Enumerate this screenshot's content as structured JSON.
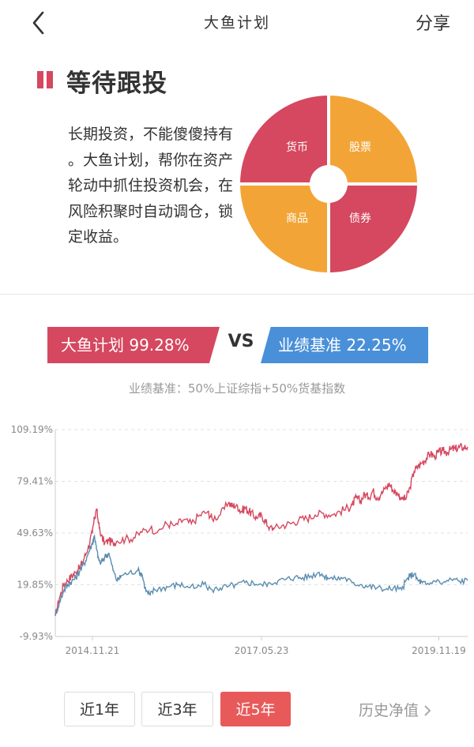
{
  "nav": {
    "title": "大鱼计划",
    "share": "分享"
  },
  "section": {
    "title": "等待跟投",
    "description": "长期投资，不能傻傻持有 。大鱼计划，帮你在资产轮动中抓住投资机会，在风险积聚时自动调仓，锁定收益。"
  },
  "allocation": [
    {
      "label": "货币",
      "color": "#d5485f"
    },
    {
      "label": "股票",
      "color": "#f2a536"
    },
    {
      "label": "债券",
      "color": "#d5485f"
    },
    {
      "label": "商品",
      "color": "#f2a536"
    }
  ],
  "compare": {
    "plan": "大鱼计划 99.28%",
    "vs": "VS",
    "benchmark": "业绩基准 22.25%",
    "benchmark_desc": "业绩基准：50%上证综指+50%货基指数"
  },
  "colors": {
    "plan": "#d5485f",
    "benchmark": "#5b8db0",
    "accent": "#e85a5a"
  },
  "chart_data": {
    "type": "line",
    "y_ticks": [
      "109.19%",
      "79.41%",
      "49.63%",
      "19.85%",
      "-9.93%"
    ],
    "x_ticks": [
      "2014.11.21",
      "2017.05.23",
      "2019.11.19"
    ],
    "ylim": [
      -9.93,
      109.19
    ],
    "xlim": [
      0,
      1
    ],
    "series": [
      {
        "values": [
          [
            0.0,
            2
          ],
          [
            0.01,
            12
          ],
          [
            0.02,
            20
          ],
          [
            0.03,
            22
          ],
          [
            0.04,
            25
          ],
          [
            0.05,
            27
          ],
          [
            0.06,
            30
          ],
          [
            0.07,
            35
          ],
          [
            0.08,
            42
          ],
          [
            0.09,
            50
          ],
          [
            0.095,
            58
          ],
          [
            0.1,
            63
          ],
          [
            0.105,
            55
          ],
          [
            0.11,
            48
          ],
          [
            0.12,
            44
          ],
          [
            0.13,
            45
          ],
          [
            0.14,
            44
          ],
          [
            0.15,
            45
          ],
          [
            0.17,
            46
          ],
          [
            0.19,
            47
          ],
          [
            0.21,
            50
          ],
          [
            0.23,
            52
          ],
          [
            0.25,
            51
          ],
          [
            0.27,
            55
          ],
          [
            0.29,
            54
          ],
          [
            0.31,
            57
          ],
          [
            0.33,
            55
          ],
          [
            0.35,
            60
          ],
          [
            0.37,
            62
          ],
          [
            0.38,
            58
          ],
          [
            0.4,
            60
          ],
          [
            0.42,
            67
          ],
          [
            0.43,
            65
          ],
          [
            0.44,
            66
          ],
          [
            0.45,
            62
          ],
          [
            0.46,
            64
          ],
          [
            0.47,
            62
          ],
          [
            0.48,
            60
          ],
          [
            0.49,
            58
          ],
          [
            0.5,
            60
          ],
          [
            0.51,
            56
          ],
          [
            0.52,
            53
          ],
          [
            0.53,
            52
          ],
          [
            0.55,
            54
          ],
          [
            0.57,
            55
          ],
          [
            0.59,
            57
          ],
          [
            0.61,
            58
          ],
          [
            0.63,
            60
          ],
          [
            0.65,
            61
          ],
          [
            0.67,
            60
          ],
          [
            0.69,
            62
          ],
          [
            0.71,
            64
          ],
          [
            0.72,
            66
          ],
          [
            0.73,
            70
          ],
          [
            0.74,
            68
          ],
          [
            0.75,
            72
          ],
          [
            0.76,
            70
          ],
          [
            0.77,
            74
          ],
          [
            0.78,
            70
          ],
          [
            0.79,
            72
          ],
          [
            0.8,
            75
          ],
          [
            0.81,
            78
          ],
          [
            0.82,
            74
          ],
          [
            0.83,
            72
          ],
          [
            0.84,
            70
          ],
          [
            0.85,
            69
          ],
          [
            0.86,
            76
          ],
          [
            0.87,
            85
          ],
          [
            0.88,
            88
          ],
          [
            0.89,
            90
          ],
          [
            0.9,
            93
          ],
          [
            0.91,
            95
          ],
          [
            0.92,
            94
          ],
          [
            0.93,
            96
          ],
          [
            0.94,
            97
          ],
          [
            0.95,
            96
          ],
          [
            0.96,
            98
          ],
          [
            0.97,
            98
          ],
          [
            0.98,
            99
          ],
          [
            0.99,
            99
          ],
          [
            1.0,
            99.28
          ]
        ]
      },
      {
        "values": [
          [
            0.0,
            2
          ],
          [
            0.01,
            10
          ],
          [
            0.02,
            16
          ],
          [
            0.03,
            20
          ],
          [
            0.04,
            22
          ],
          [
            0.05,
            24
          ],
          [
            0.06,
            28
          ],
          [
            0.07,
            32
          ],
          [
            0.08,
            38
          ],
          [
            0.09,
            44
          ],
          [
            0.095,
            48
          ],
          [
            0.1,
            40
          ],
          [
            0.105,
            35
          ],
          [
            0.11,
            32
          ],
          [
            0.12,
            36
          ],
          [
            0.13,
            38
          ],
          [
            0.14,
            28
          ],
          [
            0.15,
            22
          ],
          [
            0.16,
            25
          ],
          [
            0.18,
            27
          ],
          [
            0.2,
            28
          ],
          [
            0.21,
            26
          ],
          [
            0.22,
            16
          ],
          [
            0.23,
            14
          ],
          [
            0.24,
            17
          ],
          [
            0.26,
            18
          ],
          [
            0.28,
            19
          ],
          [
            0.3,
            20
          ],
          [
            0.32,
            19
          ],
          [
            0.34,
            18
          ],
          [
            0.36,
            20
          ],
          [
            0.38,
            17
          ],
          [
            0.4,
            18
          ],
          [
            0.42,
            19
          ],
          [
            0.44,
            20
          ],
          [
            0.46,
            21
          ],
          [
            0.48,
            21
          ],
          [
            0.5,
            20
          ],
          [
            0.52,
            21
          ],
          [
            0.54,
            22
          ],
          [
            0.56,
            23
          ],
          [
            0.58,
            24
          ],
          [
            0.6,
            24
          ],
          [
            0.62,
            25
          ],
          [
            0.64,
            27
          ],
          [
            0.65,
            25
          ],
          [
            0.66,
            24
          ],
          [
            0.68,
            23
          ],
          [
            0.7,
            24
          ],
          [
            0.72,
            21
          ],
          [
            0.74,
            20
          ],
          [
            0.76,
            19
          ],
          [
            0.78,
            18
          ],
          [
            0.8,
            17
          ],
          [
            0.82,
            18
          ],
          [
            0.84,
            17
          ],
          [
            0.85,
            22
          ],
          [
            0.86,
            25
          ],
          [
            0.87,
            26
          ],
          [
            0.88,
            22
          ],
          [
            0.89,
            21
          ],
          [
            0.9,
            20
          ],
          [
            0.92,
            22
          ],
          [
            0.94,
            21
          ],
          [
            0.96,
            23
          ],
          [
            0.98,
            22
          ],
          [
            1.0,
            22.25
          ]
        ]
      }
    ]
  },
  "periods": {
    "one_year": "近1年",
    "three_year": "近3年",
    "five_year": "近5年"
  },
  "history_link": "历史净值"
}
